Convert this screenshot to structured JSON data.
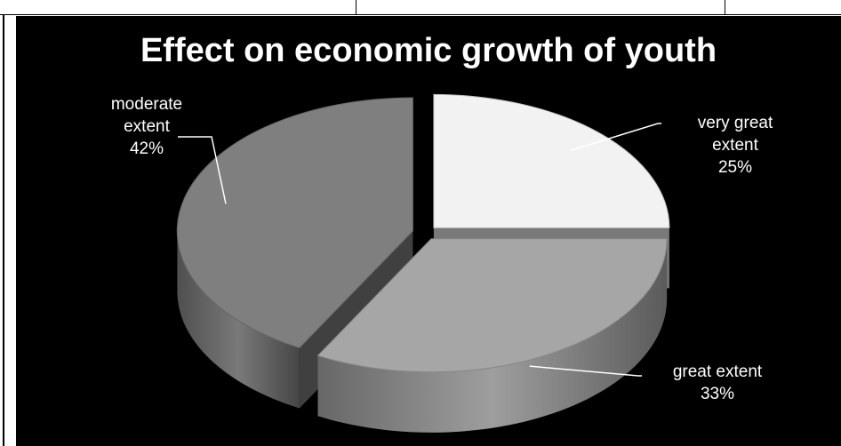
{
  "chart_data": {
    "type": "pie",
    "title": "Effect on economic growth of youth",
    "categories": [
      "very great extent",
      "great extent",
      "moderate extent"
    ],
    "values": [
      25,
      33,
      42
    ],
    "unit": "%",
    "labels": [
      {
        "line1": "very great",
        "line2": "extent",
        "pct": "25%"
      },
      {
        "line1": "great extent",
        "line2": "",
        "pct": "33%"
      },
      {
        "line1": "moderate",
        "line2": "extent",
        "pct": "42%"
      }
    ],
    "colors": [
      "#f2f2f2",
      "#a6a6a6",
      "#7f7f7f"
    ],
    "background": "#000000",
    "style": "3d-exploded",
    "legend": "none"
  }
}
